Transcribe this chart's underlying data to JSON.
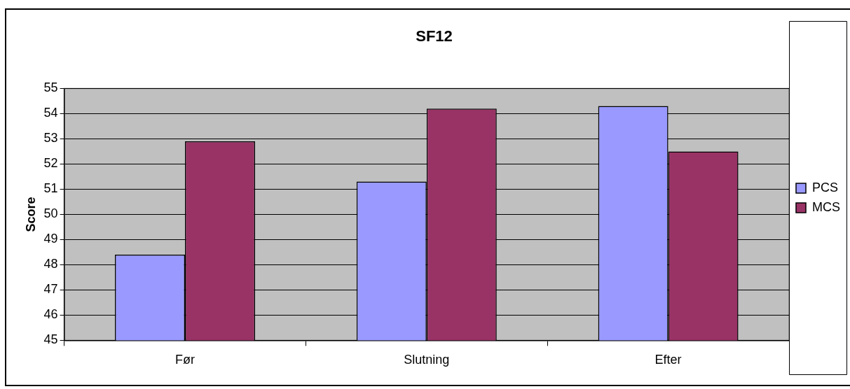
{
  "chart_data": {
    "type": "bar",
    "title": "SF12",
    "ylabel": "Score",
    "categories": [
      "Før",
      "Slutning",
      "Efter"
    ],
    "series": [
      {
        "name": "PCS",
        "color": "#9999ff",
        "values": [
          48.4,
          51.3,
          54.3
        ]
      },
      {
        "name": "MCS",
        "color": "#993366",
        "values": [
          52.9,
          54.2,
          52.5
        ]
      }
    ],
    "ylim": [
      45,
      55
    ],
    "yticks": [
      45,
      46,
      47,
      48,
      49,
      50,
      51,
      52,
      53,
      54,
      55
    ],
    "grid": "y",
    "legend": "right"
  }
}
